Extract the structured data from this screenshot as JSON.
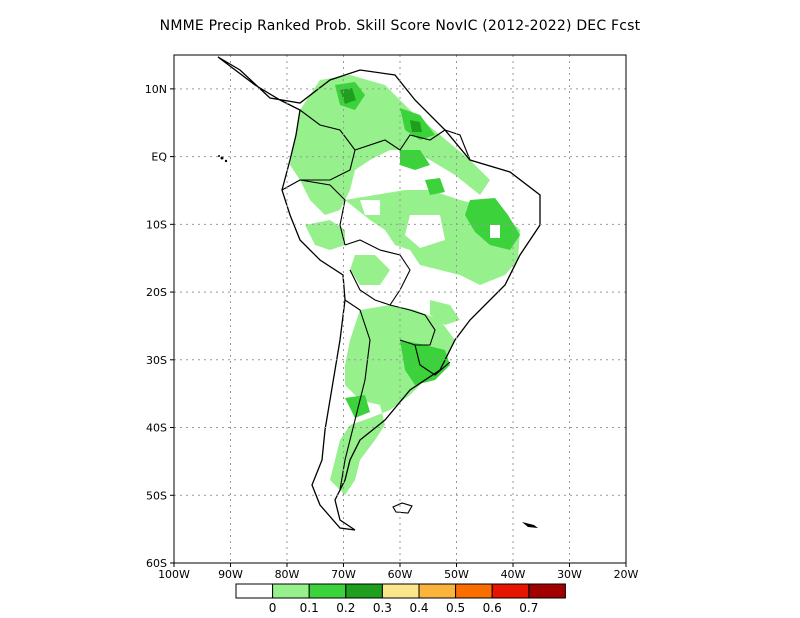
{
  "title": "NMME Precip Ranked Prob. Skill Score NovIC (2012-2022) DEC Fcst",
  "map": {
    "lon_min": -100,
    "lon_max": -20,
    "lat_min": -60,
    "lat_max": 15,
    "grid": "dotted",
    "lat_ticks": [
      {
        "lat": 10,
        "label": "10N"
      },
      {
        "lat": 0,
        "label": "EQ"
      },
      {
        "lat": -10,
        "label": "10S"
      },
      {
        "lat": -20,
        "label": "20S"
      },
      {
        "lat": -30,
        "label": "30S"
      },
      {
        "lat": -40,
        "label": "40S"
      },
      {
        "lat": -50,
        "label": "50S"
      },
      {
        "lat": -60,
        "label": "60S"
      }
    ],
    "lon_ticks": [
      {
        "lon": -100,
        "label": "100W"
      },
      {
        "lon": -90,
        "label": "90W"
      },
      {
        "lon": -80,
        "label": "80W"
      },
      {
        "lon": -70,
        "label": "70W"
      },
      {
        "lon": -60,
        "label": "60W"
      },
      {
        "lon": -50,
        "label": "50W"
      },
      {
        "lon": -40,
        "label": "40W"
      },
      {
        "lon": -30,
        "label": "30W"
      },
      {
        "lon": -20,
        "label": "20W"
      }
    ],
    "colors": {
      "0": "#ffffff",
      "0.1": "#96f08c",
      "0.2": "#3cd23c",
      "0.3": "#1ea01e",
      "coast": "#000000"
    }
  },
  "colorbar": {
    "labels": [
      "0",
      "0.1",
      "0.2",
      "0.3",
      "0.4",
      "0.5",
      "0.6",
      "0.7"
    ],
    "colors": [
      "#ffffff",
      "#96f08c",
      "#3cd23c",
      "#1ea01e",
      "#fae68c",
      "#fab43c",
      "#fa6e00",
      "#e61400",
      "#a00000"
    ]
  }
}
